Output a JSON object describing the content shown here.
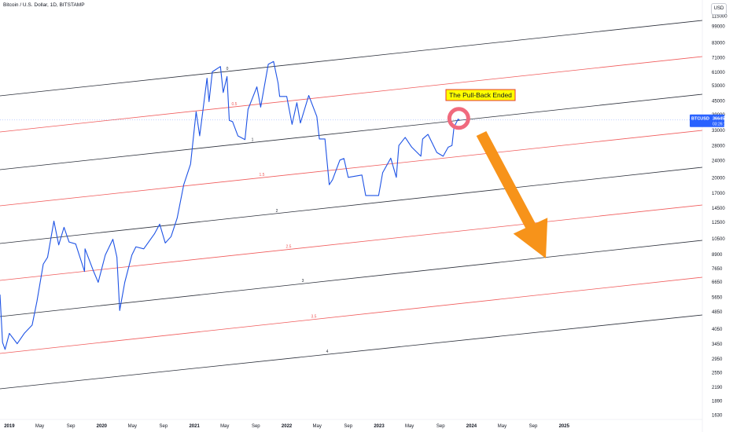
{
  "header": {
    "title": "Bitcoin / U.S. Dollar, 1D, BITSTAMP",
    "currency": "USD"
  },
  "price_tag": {
    "symbol": "BTCUSD",
    "price": "36645",
    "countdown": "03:26:12",
    "color": "#2962ff"
  },
  "annotation": {
    "text": "The Pull-Back Ended",
    "fill": "#ffff00",
    "border": "#e53935"
  },
  "colors": {
    "price_line": "#1e53e5",
    "black_band": "#2a2e39",
    "red_band": "#f05a5a",
    "arrow": "#f7931a",
    "circle": "#f06a7e"
  },
  "chart_data": {
    "type": "line",
    "title": "Bitcoin / U.S. Dollar, 1D, BITSTAMP",
    "y_scale": "log",
    "ylim": [
      1630,
      115000
    ],
    "y_ticks": [
      "115000",
      "99000",
      "83000",
      "71000",
      "61000",
      "53000",
      "45000",
      "39000",
      "33000",
      "28000",
      "24000",
      "20000",
      "17000",
      "14500",
      "12500",
      "10500",
      "8900",
      "7650",
      "6650",
      "5650",
      "4850",
      "4050",
      "3450",
      "2950",
      "2550",
      "2190",
      "1890",
      "1630"
    ],
    "x_range": [
      "2018-11-25",
      "2025-07-15"
    ],
    "x_ticks": [
      {
        "date": "2019-01-01",
        "label": "2019",
        "bold": true
      },
      {
        "date": "2019-05-01",
        "label": "May",
        "bold": false
      },
      {
        "date": "2019-09-01",
        "label": "Sep",
        "bold": false
      },
      {
        "date": "2020-01-01",
        "label": "2020",
        "bold": true
      },
      {
        "date": "2020-05-01",
        "label": "May",
        "bold": false
      },
      {
        "date": "2020-09-01",
        "label": "Sep",
        "bold": false
      },
      {
        "date": "2021-01-01",
        "label": "2021",
        "bold": true
      },
      {
        "date": "2021-05-01",
        "label": "May",
        "bold": false
      },
      {
        "date": "2021-09-01",
        "label": "Sep",
        "bold": false
      },
      {
        "date": "2022-01-01",
        "label": "2022",
        "bold": true
      },
      {
        "date": "2022-05-01",
        "label": "May",
        "bold": false
      },
      {
        "date": "2022-09-01",
        "label": "Sep",
        "bold": false
      },
      {
        "date": "2023-01-01",
        "label": "2023",
        "bold": true
      },
      {
        "date": "2023-05-01",
        "label": "May",
        "bold": false
      },
      {
        "date": "2023-09-01",
        "label": "Sep",
        "bold": false
      },
      {
        "date": "2024-01-01",
        "label": "2024",
        "bold": true
      },
      {
        "date": "2024-05-01",
        "label": "May",
        "bold": false
      },
      {
        "date": "2024-09-01",
        "label": "Sep",
        "bold": false
      },
      {
        "date": "2025-01-01",
        "label": "2025",
        "bold": true
      }
    ],
    "series": [
      {
        "values": [
          [
            "2018-11-25",
            5800
          ],
          [
            "2018-12-05",
            3500
          ],
          [
            "2018-12-15",
            3250
          ],
          [
            "2019-01-01",
            3850
          ],
          [
            "2019-02-01",
            3450
          ],
          [
            "2019-03-01",
            3850
          ],
          [
            "2019-04-01",
            4200
          ],
          [
            "2019-04-20",
            5400
          ],
          [
            "2019-05-15",
            8000
          ],
          [
            "2019-06-01",
            8600
          ],
          [
            "2019-06-26",
            12600
          ],
          [
            "2019-07-15",
            9800
          ],
          [
            "2019-08-05",
            11800
          ],
          [
            "2019-08-25",
            10100
          ],
          [
            "2019-09-20",
            9900
          ],
          [
            "2019-10-25",
            7400
          ],
          [
            "2019-10-27",
            9400
          ],
          [
            "2019-11-30",
            7400
          ],
          [
            "2019-12-18",
            6600
          ],
          [
            "2020-01-15",
            8800
          ],
          [
            "2020-02-14",
            10400
          ],
          [
            "2020-03-01",
            8600
          ],
          [
            "2020-03-12",
            4900
          ],
          [
            "2020-04-01",
            6600
          ],
          [
            "2020-04-29",
            8800
          ],
          [
            "2020-05-15",
            9600
          ],
          [
            "2020-06-15",
            9400
          ],
          [
            "2020-07-27",
            11000
          ],
          [
            "2020-08-17",
            12200
          ],
          [
            "2020-09-08",
            10000
          ],
          [
            "2020-10-01",
            10700
          ],
          [
            "2020-10-25",
            13000
          ],
          [
            "2020-11-20",
            18500
          ],
          [
            "2020-12-17",
            23000
          ],
          [
            "2021-01-08",
            40000
          ],
          [
            "2021-01-22",
            31000
          ],
          [
            "2021-02-20",
            57000
          ],
          [
            "2021-02-28",
            44500
          ],
          [
            "2021-03-13",
            61000
          ],
          [
            "2021-04-14",
            64500
          ],
          [
            "2021-04-25",
            49000
          ],
          [
            "2021-05-10",
            58000
          ],
          [
            "2021-05-19",
            36500
          ],
          [
            "2021-06-01",
            36000
          ],
          [
            "2021-06-22",
            31000
          ],
          [
            "2021-07-20",
            29800
          ],
          [
            "2021-08-01",
            41000
          ],
          [
            "2021-09-05",
            52000
          ],
          [
            "2021-09-20",
            42000
          ],
          [
            "2021-10-20",
            66000
          ],
          [
            "2021-11-10",
            68000
          ],
          [
            "2021-11-28",
            54000
          ],
          [
            "2021-12-04",
            47000
          ],
          [
            "2022-01-01",
            47000
          ],
          [
            "2022-01-22",
            35000
          ],
          [
            "2022-02-10",
            44000
          ],
          [
            "2022-02-24",
            35500
          ],
          [
            "2022-03-29",
            47500
          ],
          [
            "2022-04-30",
            38000
          ],
          [
            "2022-05-10",
            30000
          ],
          [
            "2022-06-01",
            30000
          ],
          [
            "2022-06-18",
            18500
          ],
          [
            "2022-07-01",
            19500
          ],
          [
            "2022-07-30",
            24000
          ],
          [
            "2022-08-15",
            24400
          ],
          [
            "2022-09-01",
            20000
          ],
          [
            "2022-10-25",
            20500
          ],
          [
            "2022-11-09",
            16500
          ],
          [
            "2022-12-30",
            16500
          ],
          [
            "2023-01-15",
            21000
          ],
          [
            "2023-02-16",
            24500
          ],
          [
            "2023-03-10",
            20000
          ],
          [
            "2023-03-20",
            28000
          ],
          [
            "2023-04-14",
            30500
          ],
          [
            "2023-05-10",
            27500
          ],
          [
            "2023-06-15",
            25000
          ],
          [
            "2023-06-22",
            30000
          ],
          [
            "2023-07-13",
            31500
          ],
          [
            "2023-08-17",
            26000
          ],
          [
            "2023-09-11",
            25000
          ],
          [
            "2023-10-01",
            27500
          ],
          [
            "2023-10-16",
            28000
          ],
          [
            "2023-10-24",
            34000
          ],
          [
            "2023-11-09",
            37000
          ],
          [
            "2023-11-15",
            36645
          ]
        ]
      }
    ]
  },
  "channel": {
    "levels": [
      {
        "label": "0",
        "color": "black"
      },
      {
        "label": "0.5",
        "color": "red"
      },
      {
        "label": "1",
        "color": "black"
      },
      {
        "label": "1.5",
        "color": "red"
      },
      {
        "label": "2",
        "color": "black"
      },
      {
        "label": "2.5",
        "color": "red"
      },
      {
        "label": "3",
        "color": "black"
      },
      {
        "label": "3.5",
        "color": "red"
      },
      {
        "label": "4",
        "color": "black"
      }
    ]
  }
}
